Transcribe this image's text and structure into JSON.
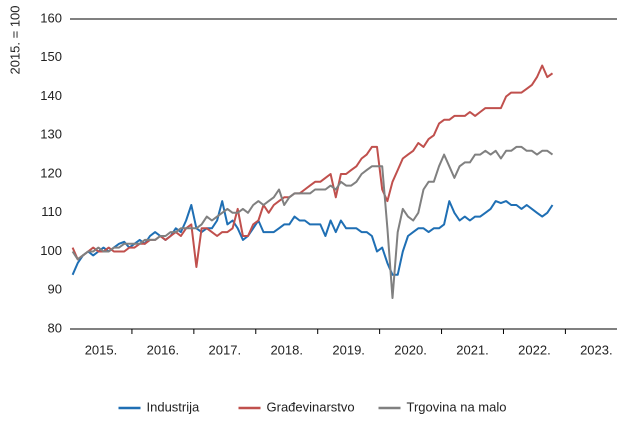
{
  "chart_data": {
    "type": "line",
    "y_label": "2015. = 100",
    "categories": [
      null,
      null,
      null,
      null,
      null,
      null,
      "2015.",
      null,
      null,
      null,
      null,
      null,
      null,
      null,
      null,
      null,
      null,
      null,
      "2016.",
      null,
      null,
      null,
      null,
      null,
      null,
      null,
      null,
      null,
      null,
      null,
      "2017.",
      null,
      null,
      null,
      null,
      null,
      null,
      null,
      null,
      null,
      null,
      null,
      "2018.",
      null,
      null,
      null,
      null,
      null,
      null,
      null,
      null,
      null,
      null,
      null,
      "2019.",
      null,
      null,
      null,
      null,
      null,
      null,
      null,
      null,
      null,
      null,
      null,
      "2020.",
      null,
      null,
      null,
      null,
      null,
      null,
      null,
      null,
      null,
      null,
      null,
      "2021.",
      null,
      null,
      null,
      null,
      null,
      null,
      null,
      null,
      null,
      null,
      null,
      "2022.",
      null,
      null,
      null,
      null,
      null,
      null,
      null,
      null,
      null,
      null,
      null,
      "2023.",
      null,
      null,
      null
    ],
    "series": [
      {
        "name": "Industrija",
        "color": "#1f6fb4",
        "values": [
          94,
          97,
          99,
          100,
          99,
          100,
          101,
          100,
          101,
          102,
          102.5,
          101,
          102,
          103,
          102,
          104,
          105,
          104,
          103,
          104,
          106,
          105,
          108,
          112,
          106,
          105,
          106,
          106,
          108,
          113,
          107,
          108,
          106,
          103,
          104,
          106,
          108,
          105,
          105,
          105,
          106,
          107,
          107,
          109,
          108,
          108,
          107,
          107,
          107,
          104,
          108,
          105,
          108,
          106,
          106,
          106,
          105,
          105,
          104,
          100,
          101,
          97,
          94,
          94,
          100,
          104,
          105,
          106,
          106,
          105,
          106,
          106,
          107,
          113,
          110,
          108,
          109,
          108,
          109,
          109,
          110,
          111,
          113,
          112.5,
          113,
          112,
          112,
          111,
          112,
          111,
          110,
          109,
          110,
          112,
          null,
          null,
          null,
          null,
          null,
          null,
          null,
          null,
          null,
          null,
          null,
          null
        ]
      },
      {
        "name": "Građevinarstvo",
        "color": "#c0504d",
        "values": [
          101,
          98,
          99,
          100,
          101,
          100,
          100,
          101,
          100,
          100,
          100,
          101,
          101,
          102,
          102,
          103,
          103,
          104,
          103,
          104,
          105,
          104,
          106,
          107,
          96,
          106,
          106,
          105,
          104,
          105,
          105,
          106,
          111,
          104,
          104,
          107,
          108,
          112,
          110,
          112,
          113,
          114,
          114,
          115,
          115,
          116,
          117,
          118,
          118,
          119,
          120,
          114,
          120,
          120,
          121,
          122,
          124,
          125,
          127,
          127,
          116,
          113,
          118,
          121,
          124,
          125,
          126,
          128,
          127,
          129,
          130,
          133,
          134,
          134,
          135,
          135,
          135,
          136,
          135,
          136,
          137,
          137,
          137,
          137,
          140,
          141,
          141,
          141,
          142,
          143,
          145,
          148,
          145,
          146,
          null,
          null,
          null,
          null,
          null,
          null,
          null,
          null,
          null,
          null,
          null,
          null
        ]
      },
      {
        "name": "Trgovina na malo",
        "color": "#808080",
        "values": [
          100,
          98,
          99,
          100,
          100,
          101,
          100,
          100,
          101,
          101,
          102,
          102,
          102,
          102,
          103,
          103,
          103,
          104,
          104,
          105,
          105,
          106,
          106,
          106,
          106,
          107,
          109,
          108,
          109,
          110,
          111,
          110,
          110,
          111,
          110,
          112,
          113,
          112,
          113,
          114,
          116,
          112,
          114,
          115,
          115,
          115,
          115,
          116,
          116,
          116,
          117,
          116,
          118,
          117,
          117,
          118,
          120,
          121,
          122,
          122,
          122,
          106,
          88,
          105,
          111,
          109,
          108,
          110,
          116,
          118,
          118,
          122,
          125,
          122,
          119,
          122,
          123,
          123,
          125,
          125,
          126,
          125,
          126,
          124,
          126,
          126,
          127,
          127,
          126,
          126,
          125,
          126,
          126,
          125,
          null,
          null,
          null,
          null,
          null,
          null,
          null,
          null,
          null,
          null,
          null,
          null
        ]
      }
    ],
    "ylim": [
      80,
      160
    ],
    "yticks": [
      80,
      90,
      100,
      110,
      120,
      130,
      140,
      150,
      160
    ],
    "grid": false,
    "legend": "bottom"
  }
}
